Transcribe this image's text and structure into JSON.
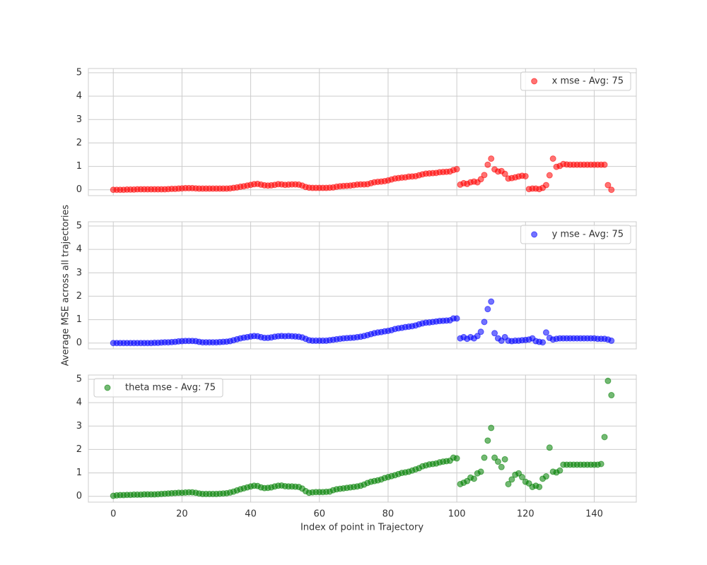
{
  "chart_data": {
    "type": "scatter",
    "xlabel": "Index of point in Trajectory",
    "ylabel": "Average MSE across all trajectories",
    "grid": true,
    "xlim": [
      -7.25,
      152.25
    ],
    "xticks": [
      0,
      20,
      40,
      60,
      80,
      100,
      120,
      140
    ],
    "ylim": [
      -0.25,
      5.18
    ],
    "yticks": [
      0,
      1,
      2,
      3,
      4,
      5
    ],
    "x": [
      0,
      1,
      2,
      3,
      4,
      5,
      6,
      7,
      8,
      9,
      10,
      11,
      12,
      13,
      14,
      15,
      16,
      17,
      18,
      19,
      20,
      21,
      22,
      23,
      24,
      25,
      26,
      27,
      28,
      29,
      30,
      31,
      32,
      33,
      34,
      35,
      36,
      37,
      38,
      39,
      40,
      41,
      42,
      43,
      44,
      45,
      46,
      47,
      48,
      49,
      50,
      51,
      52,
      53,
      54,
      55,
      56,
      57,
      58,
      59,
      60,
      61,
      62,
      63,
      64,
      65,
      66,
      67,
      68,
      69,
      70,
      71,
      72,
      73,
      74,
      75,
      76,
      77,
      78,
      79,
      80,
      81,
      82,
      83,
      84,
      85,
      86,
      87,
      88,
      89,
      90,
      91,
      92,
      93,
      94,
      95,
      96,
      97,
      98,
      99,
      100,
      101,
      102,
      103,
      104,
      105,
      106,
      107,
      108,
      109,
      110,
      111,
      112,
      113,
      114,
      115,
      116,
      117,
      118,
      119,
      120,
      121,
      122,
      123,
      124,
      125,
      126,
      127,
      128,
      129,
      130,
      131,
      132,
      133,
      134,
      135,
      136,
      137,
      138,
      139,
      140,
      141,
      142,
      143,
      144,
      145
    ],
    "series": [
      {
        "name": "x mse - Avg: 75",
        "color": "#ff0000",
        "legend": "upper right",
        "values": [
          0,
          0,
          0,
          0,
          0.01,
          0.01,
          0.01,
          0.02,
          0.02,
          0.02,
          0.02,
          0.02,
          0.02,
          0.02,
          0.02,
          0.02,
          0.03,
          0.04,
          0.04,
          0.05,
          0.06,
          0.07,
          0.07,
          0.07,
          0.06,
          0.05,
          0.05,
          0.05,
          0.05,
          0.05,
          0.05,
          0.05,
          0.05,
          0.05,
          0.06,
          0.08,
          0.1,
          0.13,
          0.15,
          0.18,
          0.21,
          0.24,
          0.25,
          0.22,
          0.19,
          0.18,
          0.19,
          0.21,
          0.24,
          0.23,
          0.21,
          0.22,
          0.23,
          0.23,
          0.22,
          0.18,
          0.12,
          0.09,
          0.08,
          0.08,
          0.08,
          0.08,
          0.08,
          0.09,
          0.1,
          0.13,
          0.15,
          0.16,
          0.17,
          0.18,
          0.2,
          0.22,
          0.23,
          0.23,
          0.24,
          0.28,
          0.32,
          0.34,
          0.35,
          0.37,
          0.4,
          0.44,
          0.48,
          0.5,
          0.52,
          0.53,
          0.56,
          0.57,
          0.58,
          0.62,
          0.66,
          0.69,
          0.7,
          0.71,
          0.72,
          0.75,
          0.76,
          0.77,
          0.78,
          0.84,
          0.88,
          0.22,
          0.28,
          0.25,
          0.32,
          0.35,
          0.32,
          0.45,
          0.63,
          1.07,
          1.33,
          0.87,
          0.78,
          0.8,
          0.68,
          0.48,
          0.5,
          0.53,
          0.57,
          0.6,
          0.58,
          0.03,
          0.05,
          0.05,
          0.03,
          0.08,
          0.2,
          0.62,
          1.33,
          0.98,
          1.02,
          1.1,
          1.08,
          1.07,
          1.07,
          1.07,
          1.07,
          1.07,
          1.07,
          1.07,
          1.07,
          1.07,
          1.07,
          1.07,
          0.2,
          0
        ]
      },
      {
        "name": "y mse - Avg: 75",
        "color": "#0000ff",
        "legend": "upper right",
        "values": [
          0,
          0,
          0,
          0,
          0,
          0,
          0,
          0,
          0,
          0,
          0,
          0,
          0.01,
          0.01,
          0.02,
          0.03,
          0.03,
          0.04,
          0.05,
          0.07,
          0.08,
          0.09,
          0.09,
          0.09,
          0.08,
          0.05,
          0.03,
          0.03,
          0.03,
          0.03,
          0.03,
          0.04,
          0.05,
          0.06,
          0.08,
          0.12,
          0.16,
          0.2,
          0.23,
          0.25,
          0.28,
          0.3,
          0.29,
          0.25,
          0.22,
          0.22,
          0.24,
          0.27,
          0.29,
          0.3,
          0.29,
          0.3,
          0.29,
          0.28,
          0.27,
          0.24,
          0.18,
          0.12,
          0.1,
          0.1,
          0.1,
          0.1,
          0.1,
          0.12,
          0.14,
          0.16,
          0.18,
          0.2,
          0.21,
          0.22,
          0.23,
          0.25,
          0.27,
          0.3,
          0.34,
          0.38,
          0.42,
          0.45,
          0.47,
          0.5,
          0.52,
          0.55,
          0.6,
          0.63,
          0.65,
          0.68,
          0.7,
          0.72,
          0.75,
          0.8,
          0.84,
          0.87,
          0.88,
          0.9,
          0.92,
          0.94,
          0.95,
          0.96,
          0.97,
          1.05,
          1.05,
          0.2,
          0.25,
          0.18,
          0.25,
          0.2,
          0.3,
          0.48,
          0.9,
          1.45,
          1.77,
          0.42,
          0.2,
          0.1,
          0.25,
          0.1,
          0.08,
          0.1,
          0.1,
          0.12,
          0.13,
          0.15,
          0.2,
          0.08,
          0.05,
          0.03,
          0.45,
          0.22,
          0.15,
          0.18,
          0.2,
          0.2,
          0.2,
          0.2,
          0.2,
          0.2,
          0.2,
          0.2,
          0.2,
          0.2,
          0.2,
          0.18,
          0.18,
          0.18,
          0.15,
          0.1
        ]
      },
      {
        "name": "theta mse - Avg: 75",
        "color": "#008000",
        "legend": "upper left",
        "values": [
          0.02,
          0.04,
          0.05,
          0.05,
          0.06,
          0.06,
          0.07,
          0.07,
          0.07,
          0.08,
          0.08,
          0.08,
          0.08,
          0.09,
          0.1,
          0.11,
          0.12,
          0.13,
          0.14,
          0.15,
          0.15,
          0.16,
          0.17,
          0.17,
          0.15,
          0.12,
          0.1,
          0.1,
          0.1,
          0.1,
          0.1,
          0.11,
          0.12,
          0.13,
          0.16,
          0.2,
          0.25,
          0.3,
          0.34,
          0.38,
          0.42,
          0.45,
          0.44,
          0.38,
          0.35,
          0.36,
          0.38,
          0.42,
          0.45,
          0.46,
          0.43,
          0.42,
          0.42,
          0.41,
          0.4,
          0.33,
          0.22,
          0.15,
          0.17,
          0.18,
          0.18,
          0.18,
          0.19,
          0.2,
          0.26,
          0.3,
          0.32,
          0.34,
          0.36,
          0.38,
          0.4,
          0.42,
          0.45,
          0.5,
          0.57,
          0.62,
          0.65,
          0.68,
          0.72,
          0.78,
          0.82,
          0.86,
          0.9,
          0.95,
          1.0,
          1.02,
          1.05,
          1.1,
          1.15,
          1.2,
          1.28,
          1.32,
          1.36,
          1.38,
          1.4,
          1.45,
          1.48,
          1.5,
          1.52,
          1.65,
          1.62,
          0.52,
          0.58,
          0.65,
          0.8,
          0.75,
          0.98,
          1.05,
          1.65,
          2.38,
          2.92,
          1.65,
          1.48,
          1.25,
          1.58,
          0.52,
          0.72,
          0.92,
          0.98,
          0.82,
          0.62,
          0.55,
          0.4,
          0.45,
          0.4,
          0.75,
          0.85,
          2.08,
          1.05,
          1.02,
          1.1,
          1.35,
          1.35,
          1.35,
          1.35,
          1.35,
          1.35,
          1.35,
          1.35,
          1.35,
          1.35,
          1.35,
          1.38,
          2.53,
          4.93,
          4.32
        ]
      }
    ]
  }
}
